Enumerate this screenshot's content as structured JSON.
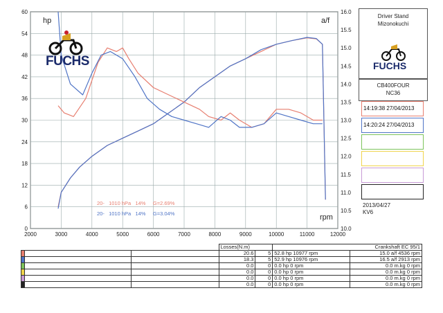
{
  "header": {
    "left_axis_label": "hp",
    "right_axis_label": "a/f",
    "x_axis_label": "rpm",
    "logo_text": "FUCHS"
  },
  "side_panel": {
    "title_line1": "Driver Stand",
    "title_line2": "Mizonokuchi",
    "logo_text": "FUCHS",
    "model": "CB400FOUR",
    "model_code": "NC36",
    "runs": [
      {
        "label": "14:19:38  27/04/2013",
        "color": "#e77e6f"
      },
      {
        "label": "14:20:24  27/04/2013",
        "color": "#4f74c6"
      },
      {
        "label": "",
        "color": "#7cc35a"
      },
      {
        "label": "",
        "color": "#f0d34a"
      },
      {
        "label": "",
        "color": "#c89ad6"
      },
      {
        "label": "",
        "color": "#222222"
      }
    ],
    "date": "2013/04/27",
    "code": "KV6"
  },
  "legend_notes": [
    {
      "text": "20-   1010 hPa   14%     G=2.69%",
      "color": "#e77e6f"
    },
    {
      "text": "20-   1010 hPa   14%     G=3.04%",
      "color": "#4f74c6"
    }
  ],
  "table": {
    "losses_header": "Losses(N.m)",
    "crank_header": "Crankshaft EC 95/1",
    "rows": [
      {
        "color": "#e77e6f",
        "loss": "20.6",
        "n": "5",
        "power": "52.8 hp 10977 rpm",
        "torque": "15.0 a/f 4536 rpm"
      },
      {
        "color": "#4f74c6",
        "loss": "18.3",
        "n": "5",
        "power": "52.9 hp 10976 rpm",
        "torque": "16.5 a/f 2913 rpm"
      },
      {
        "color": "#7cc35a",
        "loss": "0.0",
        "n": "0",
        "power": "0.0 hp 0 rpm",
        "torque": "0.0 m.kg 0 rpm"
      },
      {
        "color": "#f0d34a",
        "loss": "0.0",
        "n": "0",
        "power": "0.0 hp 0 rpm",
        "torque": "0.0 m.kg 0 rpm"
      },
      {
        "color": "#c89ad6",
        "loss": "0.0",
        "n": "0",
        "power": "0.0 hp 0 rpm",
        "torque": "0.0 m.kg 0 rpm"
      },
      {
        "color": "#222222",
        "loss": "0.0",
        "n": "0",
        "power": "0.0 hp 0 rpm",
        "torque": "0.0 m.kg 0 rpm"
      }
    ]
  },
  "chart_data": {
    "type": "line",
    "xlabel": "rpm",
    "ylabel": "hp",
    "y2label": "a/f",
    "xlim": [
      2000,
      12000
    ],
    "ylim": [
      0,
      60
    ],
    "y2lim": [
      10.0,
      16.0
    ],
    "x_ticks": [
      2000,
      3000,
      4000,
      5000,
      6000,
      7000,
      8000,
      9000,
      10000,
      11000,
      12000
    ],
    "y_ticks": [
      0,
      6,
      12,
      18,
      24,
      30,
      36,
      42,
      48,
      54,
      60
    ],
    "y2_ticks": [
      10.0,
      10.5,
      11.0,
      11.5,
      12.0,
      12.5,
      13.0,
      13.5,
      14.0,
      14.5,
      15.0,
      15.5,
      16.0
    ],
    "grid": true,
    "series": [
      {
        "axis": "left",
        "color": "#e77e6f",
        "x": [
          2900,
          3000,
          3300,
          3600,
          4000,
          4500,
          5000,
          5500,
          6000,
          6500,
          7000,
          7500,
          8000,
          8500,
          9000,
          9500,
          10000,
          10500,
          11000,
          11300,
          11500,
          11600
        ],
        "y": [
          6,
          10,
          14,
          17,
          20,
          23,
          25,
          27,
          29,
          32,
          35,
          39,
          42,
          45,
          47,
          49,
          51,
          52,
          52.8,
          52.5,
          51,
          8
        ]
      },
      {
        "axis": "left",
        "color": "#4f74c6",
        "x": [
          2900,
          3000,
          3300,
          3600,
          4000,
          4500,
          5000,
          5500,
          6000,
          6500,
          7000,
          7500,
          8000,
          8500,
          9000,
          9500,
          10000,
          10500,
          11000,
          11300,
          11500,
          11600
        ],
        "y": [
          5.5,
          10,
          14,
          17,
          20,
          23,
          25,
          27,
          29,
          32,
          35,
          39,
          42,
          45,
          47,
          49.5,
          51,
          52,
          52.9,
          52.6,
          51,
          8
        ]
      },
      {
        "axis": "right",
        "color": "#e77e6f",
        "x": [
          2900,
          3100,
          3400,
          3800,
          4200,
          4500,
          4800,
          5000,
          5200,
          5500,
          6000,
          6500,
          7000,
          7500,
          7800,
          8200,
          8500,
          8800,
          9200,
          9600,
          10000,
          10400,
          10800,
          11200,
          11500
        ],
        "y": [
          13.4,
          13.2,
          13.1,
          13.6,
          14.6,
          15.0,
          14.9,
          15.0,
          14.7,
          14.3,
          13.9,
          13.7,
          13.5,
          13.3,
          13.1,
          13.0,
          13.2,
          13.0,
          12.8,
          12.9,
          13.3,
          13.3,
          13.2,
          13.0,
          13.0
        ]
      },
      {
        "axis": "right",
        "color": "#4f74c6",
        "x": [
          2900,
          3000,
          3300,
          3700,
          4000,
          4300,
          4600,
          5000,
          5400,
          5800,
          6200,
          6600,
          7000,
          7400,
          7800,
          8200,
          8500,
          8800,
          9200,
          9600,
          10000,
          10400,
          10800,
          11200,
          11500
        ],
        "y": [
          16.0,
          14.8,
          14.0,
          13.7,
          14.3,
          14.8,
          14.9,
          14.7,
          14.2,
          13.6,
          13.3,
          13.1,
          13.0,
          12.9,
          12.8,
          13.1,
          13.0,
          12.8,
          12.8,
          12.9,
          13.2,
          13.1,
          13.0,
          12.9,
          12.9
        ]
      }
    ]
  }
}
